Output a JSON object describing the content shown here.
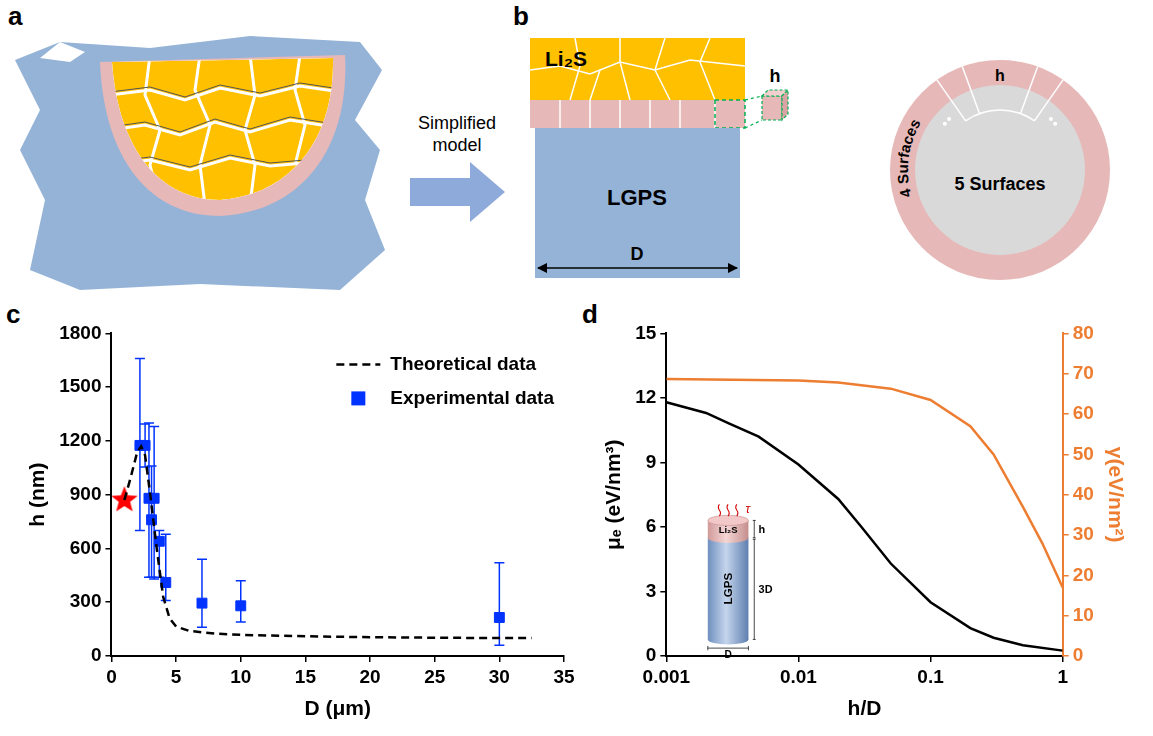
{
  "diagram": {
    "panel_a": {
      "label": "a"
    },
    "arrow": {
      "label": "Simplified model"
    },
    "panel_b": {
      "label": "b",
      "top_layer": "Li₂S",
      "substrate": "LGPS",
      "width": "D",
      "thickness": "h",
      "ring_surfaces": "4 Surfaces",
      "core_surfaces": "5 Surfaces",
      "ring_thickness": "h"
    }
  },
  "chart_data": [
    {
      "panel": "c",
      "type": "scatter",
      "x_label": "D (μm)",
      "y_label": "h (nm)",
      "xlim": [
        0,
        35
      ],
      "xticks": [
        0,
        5,
        10,
        15,
        20,
        25,
        30,
        35
      ],
      "ylim": [
        0,
        1800
      ],
      "yticks": [
        0,
        300,
        600,
        900,
        1200,
        1500,
        1800
      ],
      "grid": false,
      "legend": "upper right",
      "series": [
        {
          "name": "Theoretical data",
          "type": "line",
          "line_style": "dashed",
          "color": "#000000",
          "x": [
            1,
            1.5,
            2,
            2.3,
            2.6,
            3,
            3.5,
            4,
            4.5,
            5,
            6,
            8,
            10,
            15,
            20,
            25,
            30,
            32.5
          ],
          "values": [
            870,
            1000,
            1140,
            1170,
            1120,
            900,
            600,
            330,
            210,
            165,
            140,
            125,
            118,
            110,
            105,
            102,
            100,
            100
          ]
        },
        {
          "name": "Experimental data",
          "type": "scatter",
          "marker": "square",
          "color": "#0033ff",
          "x": [
            2.2,
            2.6,
            2.9,
            3.1,
            3.3,
            3.7,
            4.2,
            7,
            10,
            30
          ],
          "values": [
            1175,
            1175,
            880,
            760,
            880,
            640,
            410,
            295,
            280,
            215
          ],
          "error_minus": [
            475,
            120,
            440,
            320,
            450,
            200,
            100,
            135,
            90,
            155
          ],
          "error_plus": [
            485,
            120,
            420,
            300,
            400,
            60,
            270,
            245,
            140,
            305
          ]
        },
        {
          "type": "scatter",
          "marker": "star",
          "color": "#ff0000",
          "x": [
            1
          ],
          "values": [
            870
          ]
        }
      ]
    },
    {
      "panel": "d",
      "type": "line",
      "x_label": "h/D",
      "y_label": "μₑ (eV/nm³)",
      "y2_label": "γ(eV/nm²)",
      "log": "x",
      "xlim": [
        0.001,
        1
      ],
      "xticks": [
        0.001,
        0.01,
        0.1,
        1
      ],
      "ylim": [
        0,
        15
      ],
      "yticks": [
        0,
        3,
        6,
        9,
        12,
        15
      ],
      "y2lim": [
        0,
        80
      ],
      "y2ticks": [
        0,
        10,
        20,
        30,
        40,
        50,
        60,
        70,
        80
      ],
      "grid": false,
      "series": [
        {
          "color": "#000000",
          "x": [
            0.001,
            0.002,
            0.003,
            0.005,
            0.01,
            0.02,
            0.03,
            0.05,
            0.1,
            0.2,
            0.3,
            0.5,
            1
          ],
          "values": [
            11.8,
            11.3,
            10.8,
            10.2,
            8.9,
            7.3,
            6.0,
            4.3,
            2.5,
            1.3,
            0.85,
            0.5,
            0.25
          ]
        },
        {
          "color": "#ed7d31",
          "axis": "y2",
          "x": [
            0.001,
            0.01,
            0.02,
            0.05,
            0.1,
            0.2,
            0.3,
            0.5,
            0.7,
            1
          ],
          "values": [
            68.7,
            68.3,
            67.8,
            66.3,
            63.5,
            57,
            50,
            37,
            28,
            17
          ]
        }
      ],
      "inset": {
        "top_layer": "Li₂S",
        "substrate": "LGPS",
        "thickness": "h",
        "height": "3D",
        "width": "D",
        "stress": "τ"
      }
    }
  ]
}
